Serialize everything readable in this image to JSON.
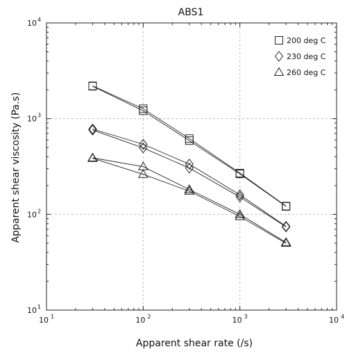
{
  "chart_data": {
    "type": "line",
    "title": "ABS1",
    "xlabel": "Apparent shear rate (/s)",
    "ylabel": "Apparent shear viscosity (Pa.s)",
    "xscale": "log",
    "yscale": "log",
    "xlim": [
      10,
      10000
    ],
    "ylim": [
      10,
      10000
    ],
    "grid": true,
    "legend_position": "top-right",
    "x_ticks": [
      {
        "base": "10",
        "exp": "1",
        "value": 10
      },
      {
        "base": "10",
        "exp": "2",
        "value": 100
      },
      {
        "base": "10",
        "exp": "3",
        "value": 1000
      },
      {
        "base": "10",
        "exp": "4",
        "value": 10000
      }
    ],
    "y_ticks": [
      {
        "base": "10",
        "exp": "1",
        "value": 10
      },
      {
        "base": "10",
        "exp": "2",
        "value": 100
      },
      {
        "base": "10",
        "exp": "3",
        "value": 1000
      },
      {
        "base": "10",
        "exp": "4",
        "value": 10000
      }
    ],
    "series": [
      {
        "name": "200 deg C",
        "marker": "square",
        "runs": [
          {
            "x": [
              30,
              100,
              300,
              1000,
              3000
            ],
            "y": [
              2200,
              1270,
              620,
              270,
              122
            ]
          },
          {
            "x": [
              30,
              100,
              300,
              1000,
              3000
            ],
            "y": [
              2180,
              1210,
              590,
              265,
              121
            ]
          }
        ]
      },
      {
        "name": "230 deg C",
        "marker": "diamond",
        "runs": [
          {
            "x": [
              30,
              100,
              300,
              1000,
              3000
            ],
            "y": [
              780,
              540,
              335,
              160,
              75
            ]
          },
          {
            "x": [
              30,
              100,
              300,
              1000,
              3000
            ],
            "y": [
              760,
              495,
              305,
              152,
              74
            ]
          }
        ]
      },
      {
        "name": "260 deg C",
        "marker": "triangle",
        "runs": [
          {
            "x": [
              30,
              100,
              300,
              1000,
              3000
            ],
            "y": [
              390,
              315,
              182,
              100,
              51
            ]
          },
          {
            "x": [
              30,
              100,
              300,
              1000,
              3000
            ],
            "y": [
              385,
              262,
              175,
              95,
              50
            ]
          }
        ]
      }
    ]
  }
}
